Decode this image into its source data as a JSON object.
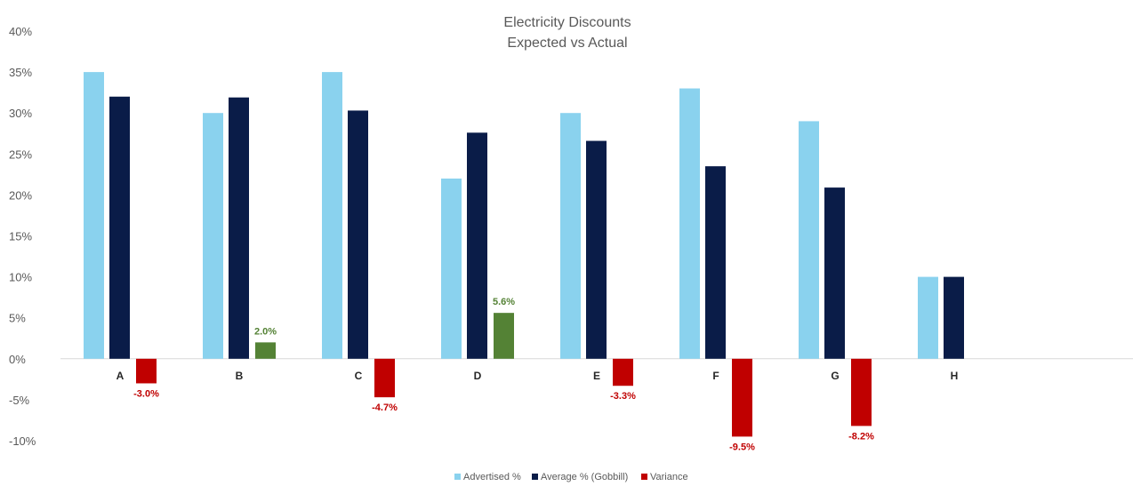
{
  "chart_data": {
    "type": "bar",
    "title": "Electricity Discounts",
    "subtitle": "Expected vs Actual",
    "categories": [
      "A",
      "B",
      "C",
      "D",
      "E",
      "F",
      "G",
      "H"
    ],
    "series": [
      {
        "name": "Advertised %",
        "color": "#8ad2ee",
        "values": [
          35,
          30,
          35,
          22,
          30,
          33,
          29,
          10
        ]
      },
      {
        "name": "Average % (Gobbill)",
        "color": "#0a1c48",
        "values": [
          32,
          31.9,
          30.3,
          27.6,
          26.6,
          23.5,
          20.9,
          10
        ]
      },
      {
        "name": "Variance",
        "color": "#c00000",
        "positive_color": "#548235",
        "values": [
          -3.0,
          2.0,
          -4.7,
          5.6,
          -3.3,
          -9.5,
          -8.2,
          null
        ]
      }
    ],
    "data_labels": [
      "-3.0%",
      "2.0%",
      "-4.7%",
      "5.6%",
      "-3.3%",
      "-9.5%",
      "-8.2%",
      null
    ],
    "ylim": [
      -10,
      40
    ],
    "yticks": [
      "40%",
      "35%",
      "30%",
      "25%",
      "20%",
      "15%",
      "10%",
      "5%",
      "0%",
      "-5%",
      "-10%"
    ],
    "grid": false,
    "legend": "bottom"
  }
}
